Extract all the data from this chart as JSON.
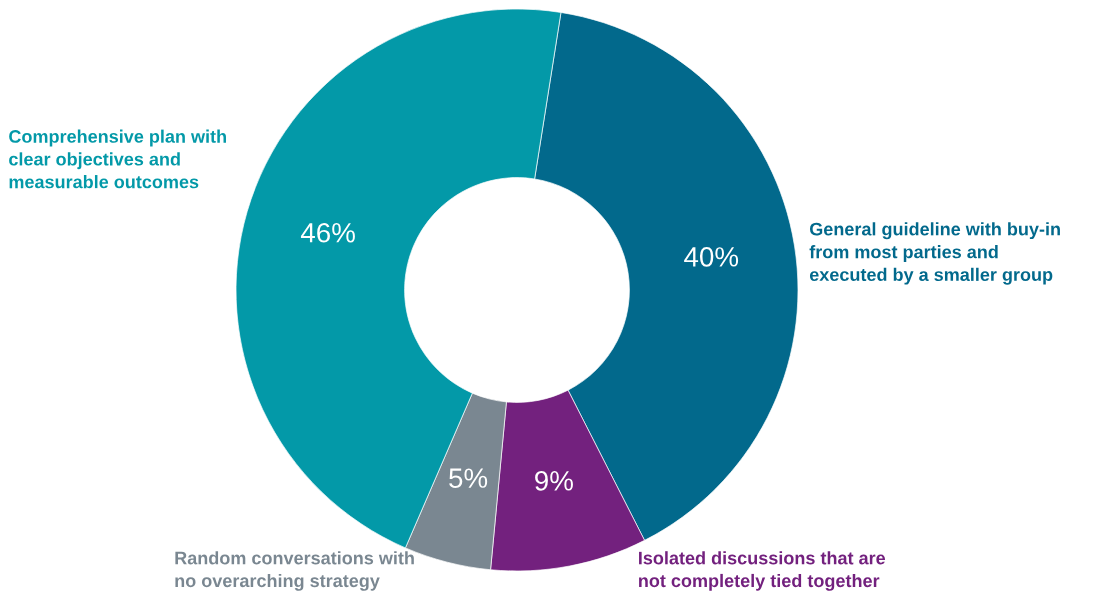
{
  "chart_data": {
    "type": "donut",
    "categories": [
      "General guideline with buy-in from most parties and executed by a smaller group",
      "Isolated discussions that are not completely tied together",
      "Random conversations with no overarching strategy",
      "Comprehensive plan with clear objectives and measurable outcomes"
    ],
    "values": [
      40,
      9,
      5,
      46
    ],
    "value_labels": [
      "40%",
      "9%",
      "5%",
      "46%"
    ],
    "colors": [
      "#02698c",
      "#73217e",
      "#7a8791",
      "#0399a8"
    ]
  }
}
